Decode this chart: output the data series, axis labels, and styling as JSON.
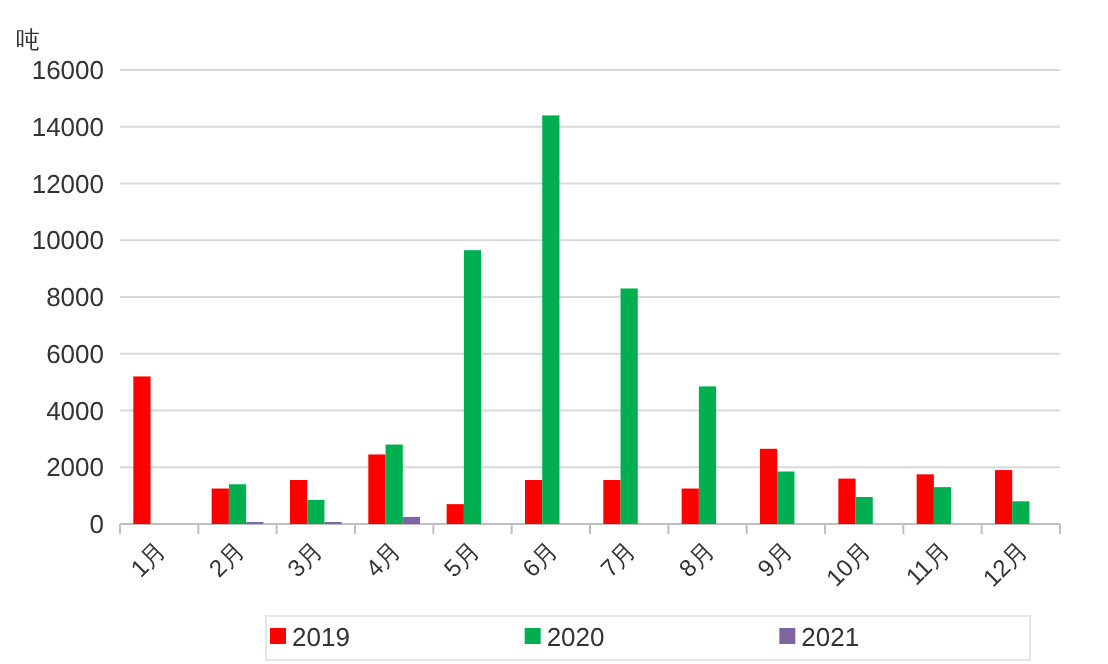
{
  "chart_data": {
    "type": "bar",
    "ylabel": "吨",
    "categories": [
      "1月",
      "2月",
      "3月",
      "4月",
      "5月",
      "6月",
      "7月",
      "8月",
      "9月",
      "10月",
      "11月",
      "12月"
    ],
    "series": [
      {
        "name": "2019",
        "color": "#ff0000",
        "values": [
          5200,
          1250,
          1550,
          2450,
          700,
          1550,
          1550,
          1250,
          2650,
          1600,
          1750,
          1900
        ]
      },
      {
        "name": "2020",
        "color": "#00b050",
        "values": [
          null,
          1400,
          850,
          2800,
          9650,
          14400,
          8300,
          4850,
          1850,
          950,
          1300,
          800
        ]
      },
      {
        "name": "2021",
        "color": "#8064a2",
        "values": [
          null,
          70,
          70,
          250,
          null,
          null,
          null,
          null,
          null,
          null,
          null,
          null
        ]
      }
    ],
    "ylim": [
      0,
      16000
    ],
    "yticks": [
      0,
      2000,
      4000,
      6000,
      8000,
      10000,
      12000,
      14000,
      16000
    ],
    "grid": "y",
    "legend": "bottom"
  }
}
